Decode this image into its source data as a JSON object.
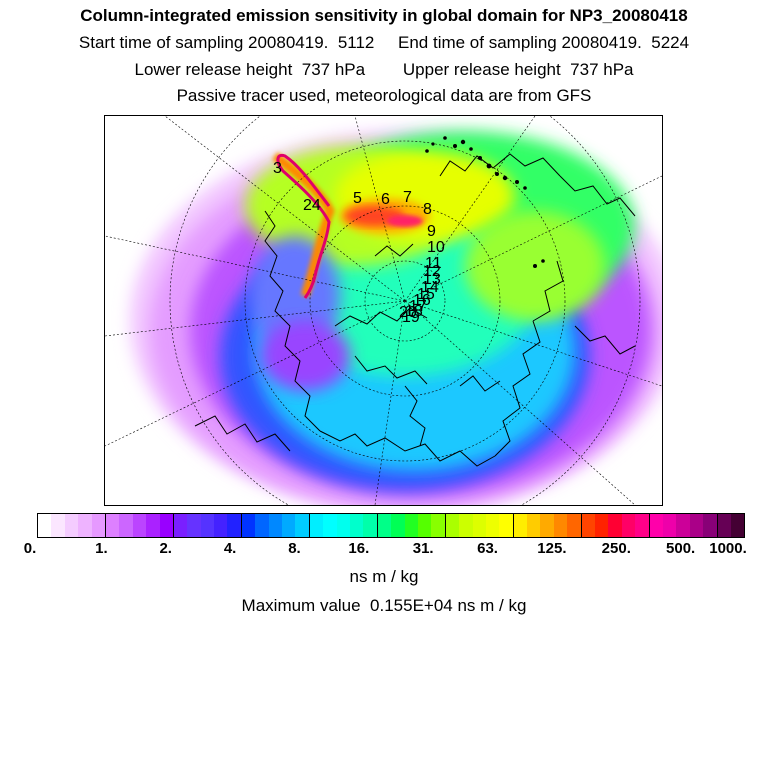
{
  "header": {
    "title": "Column-integrated emission sensitivity in global domain for NP3_20080418",
    "start_sampling": "Start time of sampling 20080419.  5112",
    "end_sampling": "End time of sampling 20080419.  5224",
    "lower_release": "Lower release height  737 hPa",
    "upper_release": "Upper release height  737 hPa",
    "tracer_note": "Passive tracer used, meteorological data are from GFS"
  },
  "map": {
    "projection": "north polar stereographic",
    "trajectory_labels": [
      "3",
      "24",
      "5",
      "6",
      "7",
      "8",
      "9",
      "10",
      "11",
      "12",
      "13",
      "14",
      "15",
      "16",
      "17",
      "18",
      "19",
      "20"
    ],
    "trajectory_color": "#e0006a"
  },
  "legend": {
    "tick_labels": [
      "0.",
      "1.",
      "2.",
      "4.",
      "8.",
      "16.",
      "31.",
      "63.",
      "125.",
      "250.",
      "500.",
      "1000."
    ],
    "colors": [
      "#ffffff",
      "#fbe6ff",
      "#f4ccff",
      "#eeb3ff",
      "#e699ff",
      "#dd80ff",
      "#cc66ff",
      "#bb44ff",
      "#aa22ff",
      "#9900ff",
      "#7a1fff",
      "#6633ff",
      "#5533ff",
      "#4422ff",
      "#2222ff",
      "#0033ff",
      "#0066ff",
      "#0088ff",
      "#00aaff",
      "#00ccff",
      "#00eeff",
      "#00ffff",
      "#00ffee",
      "#00ffcc",
      "#00ffaa",
      "#00ff88",
      "#00ff55",
      "#22ff22",
      "#55ff00",
      "#88ff00",
      "#aaff00",
      "#ccff00",
      "#ddff00",
      "#eeff00",
      "#ffff00",
      "#ffee00",
      "#ffcc00",
      "#ffaa00",
      "#ff8800",
      "#ff6600",
      "#ff4400",
      "#ff2200",
      "#ff0033",
      "#ff0066",
      "#ff0088",
      "#ff00aa",
      "#ee00aa",
      "#cc0099",
      "#aa0088",
      "#880077",
      "#660055",
      "#440033"
    ],
    "unit": "ns m / kg",
    "max_value": "Maximum value  0.155E+04 ns m / kg"
  }
}
